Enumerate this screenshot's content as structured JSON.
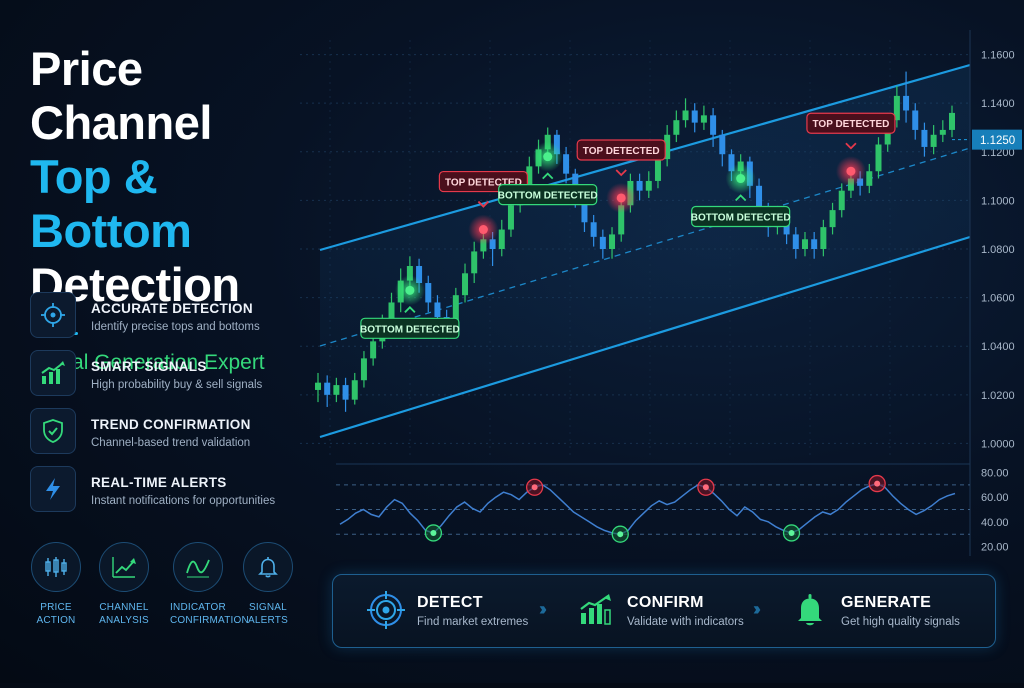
{
  "title": {
    "line1": "Price Channel",
    "line2": "Top & Bottom",
    "line3": "Detection"
  },
  "subtitle": "Signal Generation Expert",
  "features": [
    {
      "icon": "crosshair-icon",
      "title": "ACCURATE DETECTION",
      "desc": "Identify precise tops and bottoms"
    },
    {
      "icon": "bar-chart-up-icon",
      "title": "SMART SIGNALS",
      "desc": "High probability buy & sell signals"
    },
    {
      "icon": "shield-check-icon",
      "title": "TREND CONFIRMATION",
      "desc": "Channel-based trend validation"
    },
    {
      "icon": "lightning-icon",
      "title": "REAL-TIME ALERTS",
      "desc": "Instant notifications for opportunities"
    }
  ],
  "categories": [
    {
      "icon": "candlestick-icon",
      "line1": "PRICE",
      "line2": "ACTION"
    },
    {
      "icon": "trend-chart-icon",
      "line1": "CHANNEL",
      "line2": "ANALYSIS"
    },
    {
      "icon": "wave-icon",
      "line1": "INDICATOR",
      "line2": "CONFIRMATION"
    },
    {
      "icon": "bell-icon",
      "line1": "SIGNAL",
      "line2": "ALERTS"
    }
  ],
  "steps": [
    {
      "icon": "target-icon",
      "title": "DETECT",
      "desc": "Find market extremes"
    },
    {
      "icon": "bar-chart-up-icon",
      "title": "CONFIRM",
      "desc": "Validate with indicators"
    },
    {
      "icon": "bell-icon",
      "title": "GENERATE",
      "desc": "Get high quality signals"
    }
  ],
  "colors": {
    "accent": "#1fb8f0",
    "green": "#34d97b",
    "red": "#e5394b",
    "bull": "#2fc36a",
    "bear": "#2f8fe8"
  },
  "chart_data": {
    "type": "candlestick",
    "price_axis": {
      "ticks": [
        "1.1600",
        "1.1400",
        "1.1200",
        "1.1000",
        "1.0800",
        "1.0600",
        "1.0400",
        "1.0200",
        "1.0000"
      ],
      "ylim": [
        0.994,
        1.166
      ]
    },
    "current_price": "1.1250",
    "candles": [
      [
        1.022,
        1.025,
        1.017,
        1.029
      ],
      [
        1.025,
        1.02,
        1.015,
        1.028
      ],
      [
        1.02,
        1.024,
        1.017,
        1.027
      ],
      [
        1.024,
        1.018,
        1.013,
        1.027
      ],
      [
        1.018,
        1.026,
        1.016,
        1.029
      ],
      [
        1.026,
        1.035,
        1.023,
        1.038
      ],
      [
        1.035,
        1.042,
        1.032,
        1.046
      ],
      [
        1.042,
        1.05,
        1.039,
        1.053
      ],
      [
        1.05,
        1.058,
        1.046,
        1.062
      ],
      [
        1.058,
        1.067,
        1.054,
        1.072
      ],
      [
        1.067,
        1.073,
        1.063,
        1.077
      ],
      [
        1.073,
        1.066,
        1.062,
        1.076
      ],
      [
        1.066,
        1.058,
        1.054,
        1.069
      ],
      [
        1.058,
        1.052,
        1.046,
        1.061
      ],
      [
        1.052,
        1.047,
        1.043,
        1.055
      ],
      [
        1.047,
        1.061,
        1.044,
        1.064
      ],
      [
        1.061,
        1.07,
        1.058,
        1.074
      ],
      [
        1.07,
        1.079,
        1.066,
        1.083
      ],
      [
        1.079,
        1.084,
        1.076,
        1.088
      ],
      [
        1.084,
        1.08,
        1.073,
        1.087
      ],
      [
        1.08,
        1.088,
        1.077,
        1.092
      ],
      [
        1.088,
        1.098,
        1.085,
        1.102
      ],
      [
        1.098,
        1.106,
        1.095,
        1.11
      ],
      [
        1.106,
        1.114,
        1.103,
        1.118
      ],
      [
        1.114,
        1.121,
        1.111,
        1.125
      ],
      [
        1.121,
        1.127,
        1.118,
        1.13
      ],
      [
        1.127,
        1.119,
        1.115,
        1.129
      ],
      [
        1.119,
        1.111,
        1.107,
        1.122
      ],
      [
        1.111,
        1.1,
        1.097,
        1.113
      ],
      [
        1.1,
        1.091,
        1.087,
        1.102
      ],
      [
        1.091,
        1.085,
        1.081,
        1.094
      ],
      [
        1.085,
        1.08,
        1.076,
        1.088
      ],
      [
        1.08,
        1.086,
        1.076,
        1.089
      ],
      [
        1.086,
        1.098,
        1.083,
        1.101
      ],
      [
        1.098,
        1.108,
        1.095,
        1.111
      ],
      [
        1.108,
        1.104,
        1.1,
        1.111
      ],
      [
        1.104,
        1.108,
        1.101,
        1.112
      ],
      [
        1.108,
        1.117,
        1.105,
        1.121
      ],
      [
        1.117,
        1.127,
        1.114,
        1.131
      ],
      [
        1.127,
        1.133,
        1.124,
        1.137
      ],
      [
        1.133,
        1.137,
        1.13,
        1.142
      ],
      [
        1.137,
        1.132,
        1.128,
        1.14
      ],
      [
        1.132,
        1.135,
        1.129,
        1.139
      ],
      [
        1.135,
        1.127,
        1.122,
        1.138
      ],
      [
        1.127,
        1.119,
        1.114,
        1.129
      ],
      [
        1.119,
        1.112,
        1.108,
        1.121
      ],
      [
        1.112,
        1.116,
        1.109,
        1.119
      ],
      [
        1.116,
        1.106,
        1.101,
        1.118
      ],
      [
        1.106,
        1.096,
        1.092,
        1.109
      ],
      [
        1.096,
        1.089,
        1.085,
        1.099
      ],
      [
        1.089,
        1.093,
        1.086,
        1.097
      ],
      [
        1.093,
        1.086,
        1.082,
        1.096
      ],
      [
        1.086,
        1.08,
        1.076,
        1.089
      ],
      [
        1.08,
        1.084,
        1.077,
        1.087
      ],
      [
        1.084,
        1.08,
        1.076,
        1.087
      ],
      [
        1.08,
        1.089,
        1.077,
        1.092
      ],
      [
        1.089,
        1.096,
        1.086,
        1.099
      ],
      [
        1.096,
        1.104,
        1.093,
        1.107
      ],
      [
        1.104,
        1.109,
        1.101,
        1.112
      ],
      [
        1.109,
        1.106,
        1.102,
        1.112
      ],
      [
        1.106,
        1.112,
        1.103,
        1.115
      ],
      [
        1.112,
        1.123,
        1.109,
        1.126
      ],
      [
        1.123,
        1.133,
        1.12,
        1.136
      ],
      [
        1.133,
        1.143,
        1.13,
        1.147
      ],
      [
        1.143,
        1.137,
        1.132,
        1.153
      ],
      [
        1.137,
        1.129,
        1.125,
        1.14
      ],
      [
        1.129,
        1.122,
        1.118,
        1.132
      ],
      [
        1.122,
        1.127,
        1.119,
        1.131
      ],
      [
        1.127,
        1.129,
        1.124,
        1.133
      ],
      [
        1.129,
        1.136,
        1.126,
        1.139
      ]
    ],
    "signals": [
      {
        "type": "top",
        "label": "TOP DETECTED",
        "index": 18
      },
      {
        "type": "top",
        "label": "TOP DETECTED",
        "index": 33
      },
      {
        "type": "top",
        "label": "TOP DETECTED",
        "index": 58
      },
      {
        "type": "bottom",
        "label": "BOTTOM DETECTED",
        "index": 10
      },
      {
        "type": "bottom",
        "label": "BOTTOM DETECTED",
        "index": 25
      },
      {
        "type": "bottom",
        "label": "BOTTOM DETECTED",
        "index": 46
      }
    ],
    "oscillator": {
      "ticks": [
        "80.00",
        "60.00",
        "40.00",
        "20.00"
      ],
      "ylim": [
        18,
        82
      ],
      "levels": [
        70,
        50,
        30
      ],
      "values": [
        38,
        42,
        47,
        50,
        46,
        44,
        52,
        58,
        55,
        47,
        41,
        33,
        31,
        37,
        45,
        52,
        56,
        51,
        48,
        55,
        60,
        64,
        62,
        58,
        64,
        68,
        70,
        66,
        60,
        54,
        48,
        44,
        40,
        36,
        33,
        31,
        30,
        33,
        41,
        47,
        53,
        57,
        54,
        56,
        61,
        66,
        70,
        68,
        63,
        57,
        50,
        45,
        52,
        48,
        42,
        40,
        36,
        33,
        31,
        34,
        39,
        44,
        48,
        46,
        50,
        56,
        61,
        66,
        69,
        71,
        68,
        61,
        55,
        50,
        46,
        49,
        53,
        58,
        61,
        63
      ]
    },
    "osc_markers": [
      {
        "type": "top",
        "index": 25
      },
      {
        "type": "bottom",
        "index": 12
      },
      {
        "type": "top",
        "index": 47
      },
      {
        "type": "bottom",
        "index": 36
      },
      {
        "type": "top",
        "index": 69
      },
      {
        "type": "bottom",
        "index": 58
      }
    ]
  }
}
